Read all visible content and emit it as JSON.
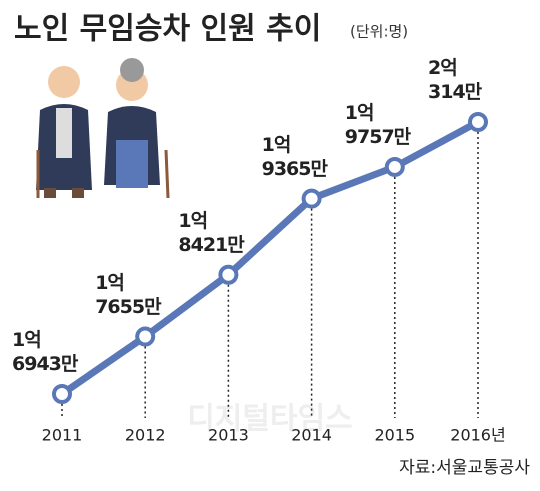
{
  "chart_data": {
    "type": "line",
    "title": "노인 무임승차 인원 추이",
    "subtitle": "(단위:명)",
    "categories": [
      "2011",
      "2012",
      "2013",
      "2014",
      "2015",
      "2016년"
    ],
    "values": [
      169430000,
      176550000,
      184210000,
      193650000,
      197570000,
      203140000
    ],
    "value_labels": [
      "1억\n6943만",
      "1억\n7655만",
      "1억\n8421만",
      "1억\n9365만",
      "1억\n9757만",
      "2억\n314만"
    ],
    "color": "#5a78b8",
    "source": "자료:서울교통공사",
    "watermark": "디지털타임스"
  }
}
